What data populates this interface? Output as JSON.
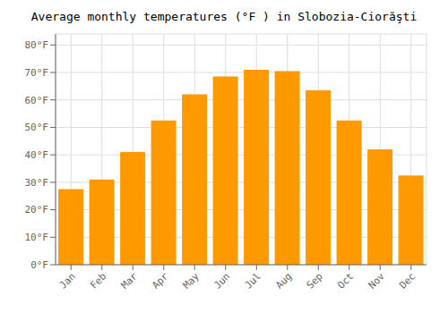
{
  "chart_data": {
    "type": "bar",
    "title": "Average monthly temperatures (°F ) in Slobozia-Ciorăşti",
    "categories": [
      "Jan",
      "Feb",
      "Mar",
      "Apr",
      "May",
      "Jun",
      "Jul",
      "Aug",
      "Sep",
      "Oct",
      "Nov",
      "Dec"
    ],
    "values": [
      27.5,
      31.0,
      41.0,
      52.5,
      62.0,
      68.5,
      71.0,
      70.5,
      63.5,
      52.5,
      42.0,
      32.5
    ],
    "color": "#FF9900",
    "ylim": [
      0,
      84
    ],
    "yticks": [
      {
        "value": 0,
        "label": "0°F"
      },
      {
        "value": 10,
        "label": "10°F"
      },
      {
        "value": 20,
        "label": "20°F"
      },
      {
        "value": 30,
        "label": "30°F"
      },
      {
        "value": 40,
        "label": "40°F"
      },
      {
        "value": 50,
        "label": "50°F"
      },
      {
        "value": 60,
        "label": "60°F"
      },
      {
        "value": 70,
        "label": "70°F"
      },
      {
        "value": 80,
        "label": "80°F"
      }
    ],
    "grid": true
  }
}
